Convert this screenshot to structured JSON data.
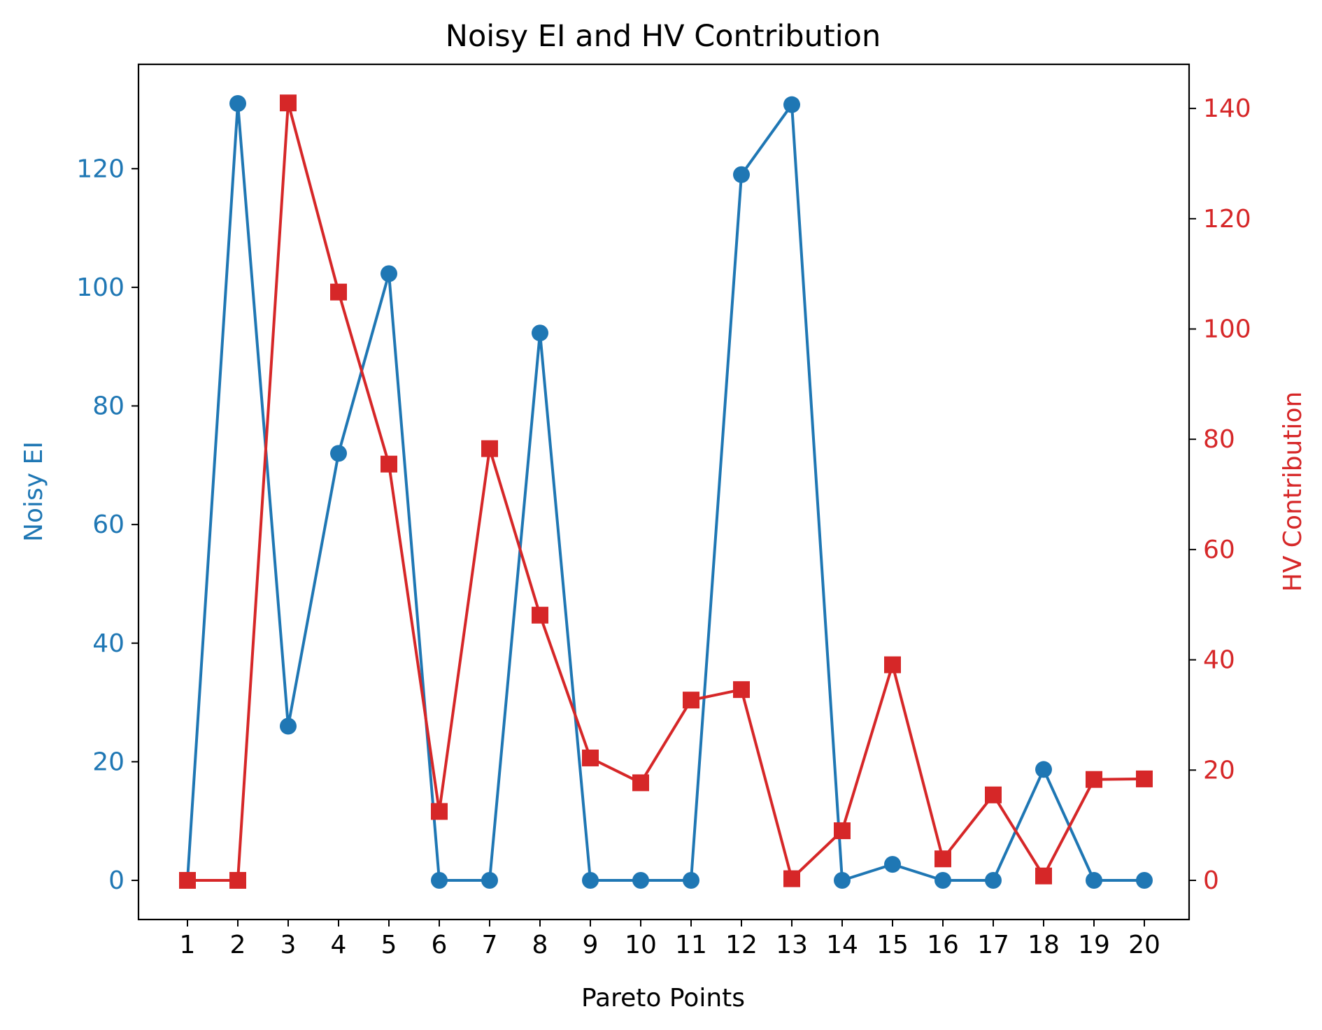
{
  "chart_data": {
    "type": "line",
    "title": "Noisy EI and HV Contribution",
    "xlabel": "Pareto Points",
    "ylabel_left": "Noisy EI",
    "ylabel_right": "HV Contribution",
    "x": [
      1,
      2,
      3,
      4,
      5,
      6,
      7,
      8,
      9,
      10,
      11,
      12,
      13,
      14,
      15,
      16,
      17,
      18,
      19,
      20
    ],
    "ylim_left": [
      -6.6,
      137.6
    ],
    "ylim_right": [
      -7.1,
      148.0
    ],
    "yticks_left": [
      0,
      20,
      40,
      60,
      80,
      100,
      120
    ],
    "yticks_right": [
      0,
      20,
      40,
      60,
      80,
      100,
      120,
      140
    ],
    "grid": false,
    "series": [
      {
        "axis": "left",
        "marker": "circle",
        "color": "#1f77b4",
        "values": [
          0,
          131,
          26,
          72,
          102.3,
          0,
          0,
          92.3,
          0,
          0,
          0,
          119,
          130.8,
          0,
          2.7,
          0,
          0,
          18.7,
          0,
          0
        ]
      },
      {
        "axis": "right",
        "marker": "square",
        "color": "#d62728",
        "values": [
          0,
          0,
          141,
          106.7,
          75.5,
          12.5,
          78.3,
          48.1,
          22.2,
          17.7,
          32.7,
          34.6,
          0.3,
          9.0,
          39.1,
          3.9,
          15.5,
          0.8,
          18.3,
          18.4
        ]
      }
    ]
  }
}
